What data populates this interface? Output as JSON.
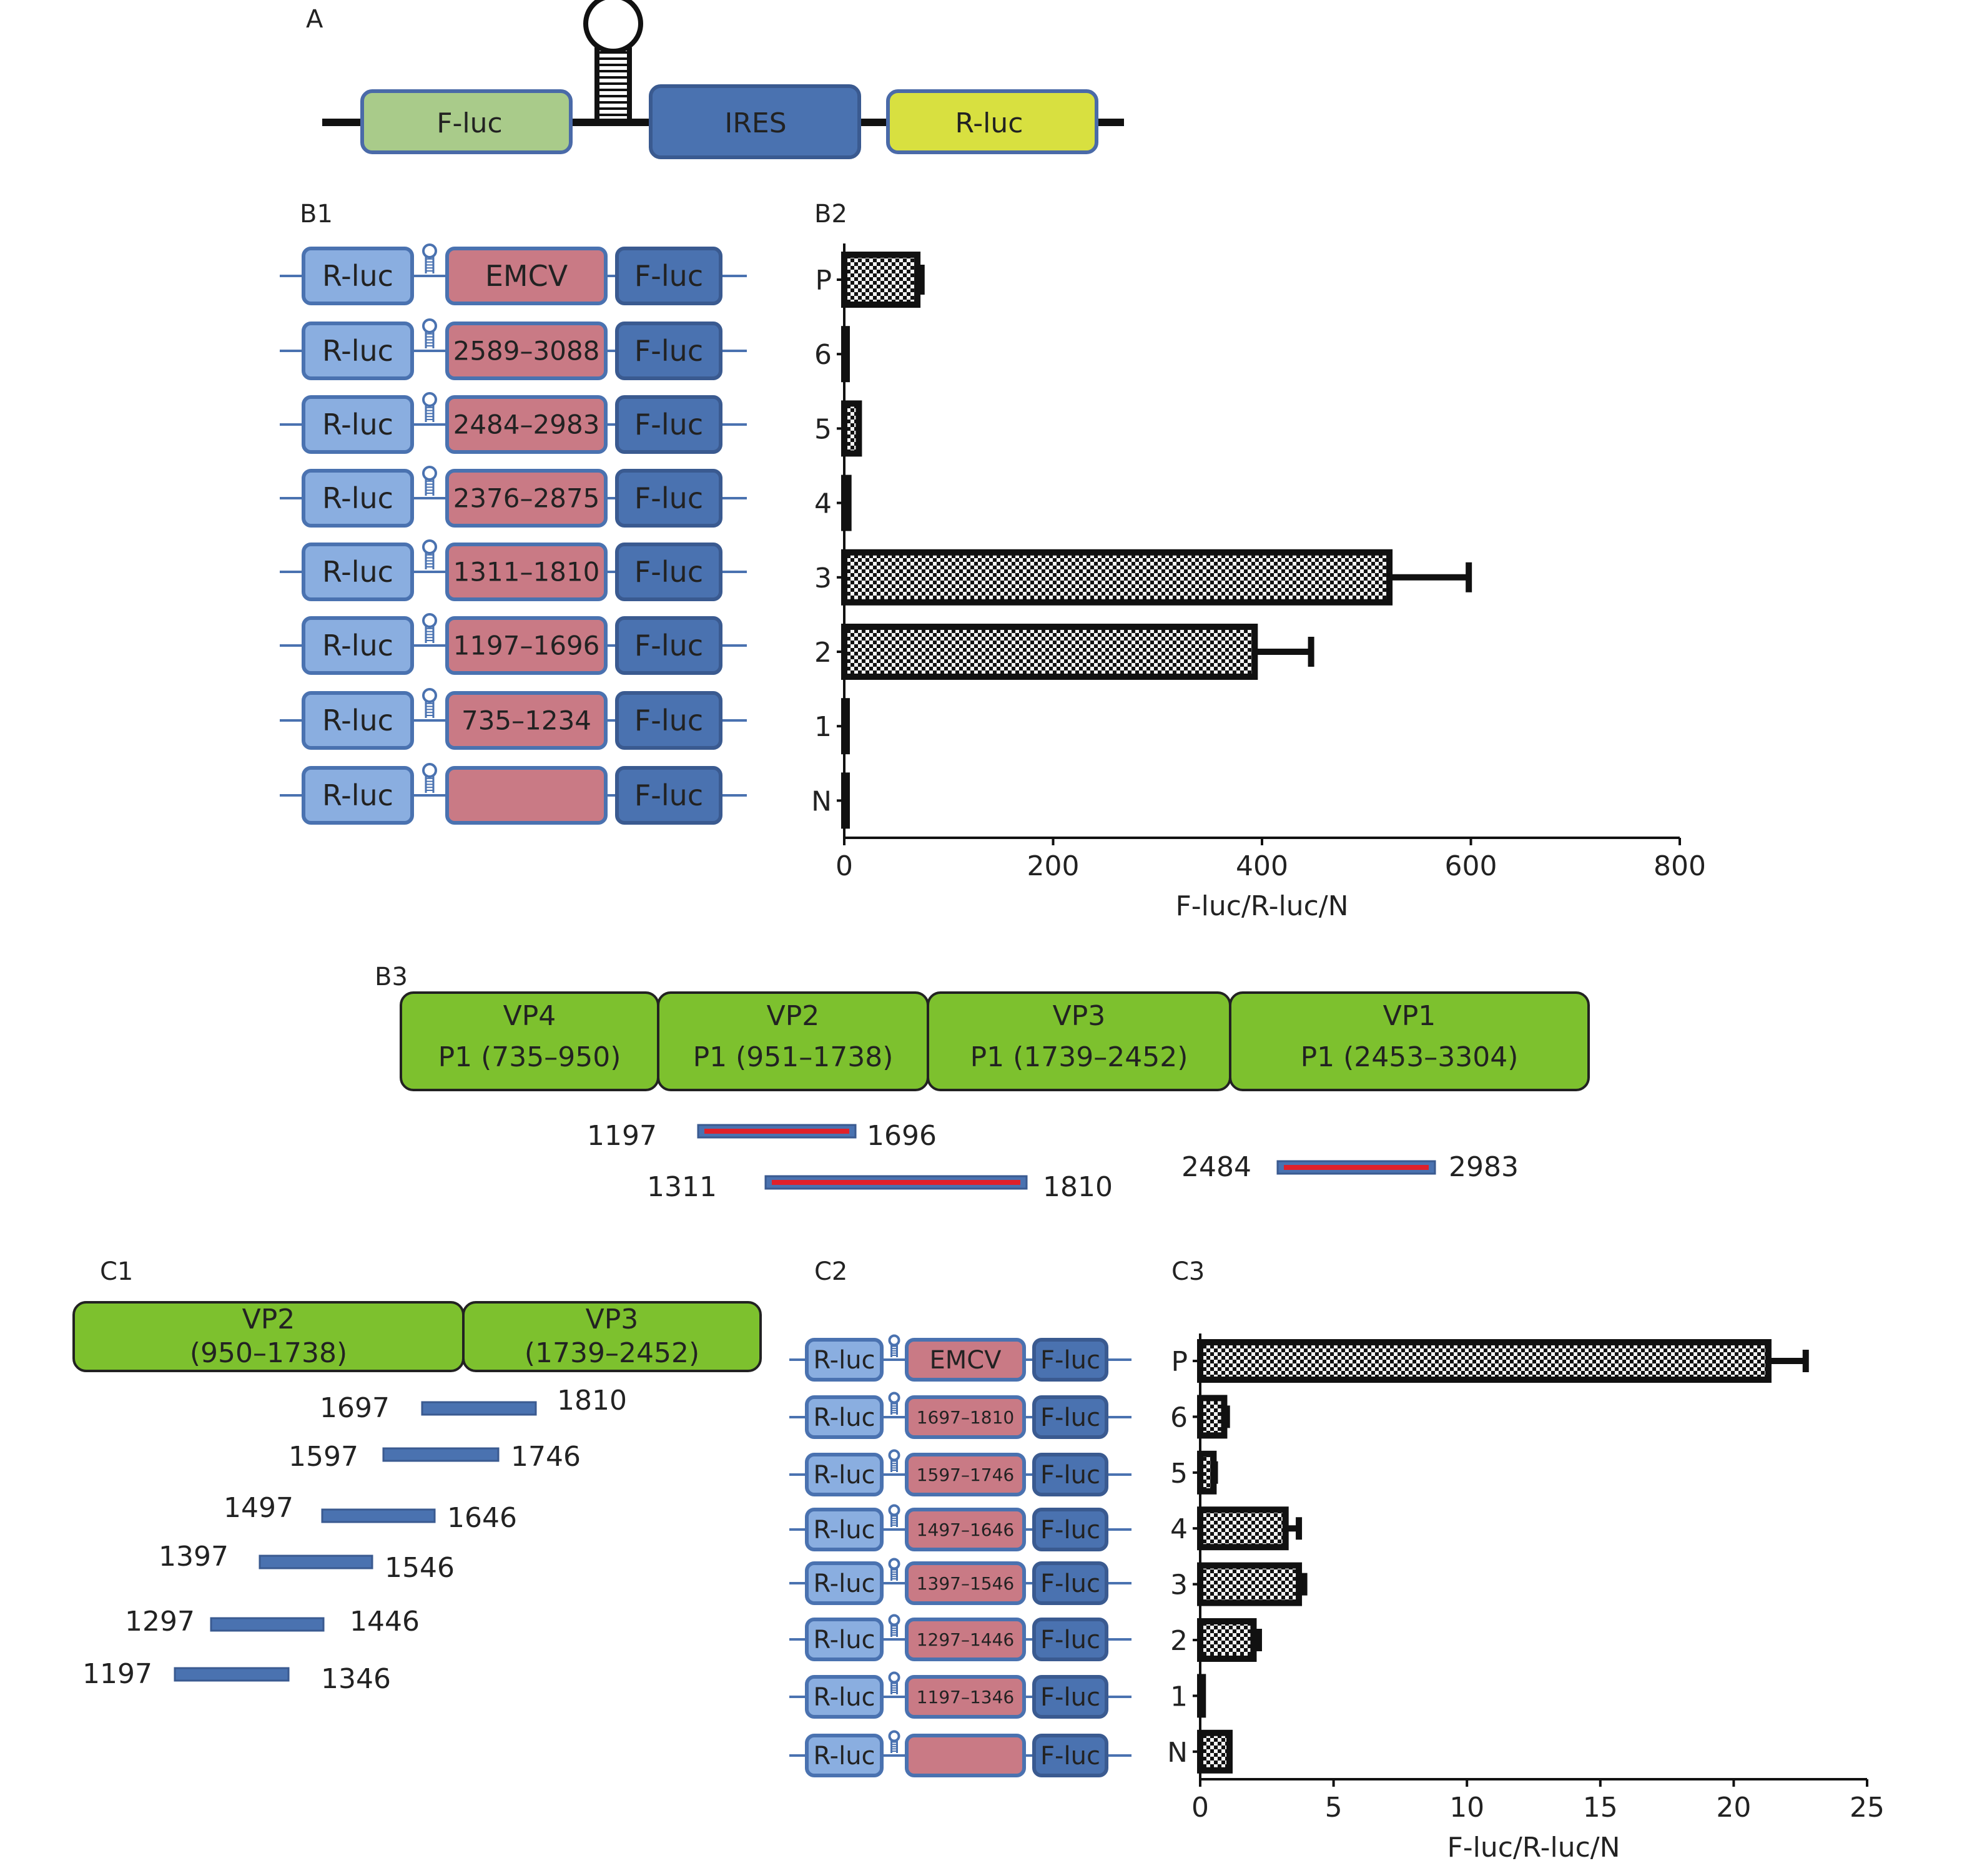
{
  "panel_labels": {
    "a": "A",
    "b1": "B1",
    "b2": "B2",
    "b3": "B3",
    "c1": "C1",
    "c2": "C2",
    "c3": "C3"
  },
  "panel_a": {
    "boxes": [
      "F-luc",
      "IRES",
      "R-luc"
    ]
  },
  "colors": {
    "rluc_light": "#8aaee0",
    "fluc_dark": "#4a72b0",
    "insert": "#c97a85",
    "vp_green": "#7dc12e",
    "fluc_green": "#a9cb8a",
    "rluc_yellow": "#d8e040",
    "segment_red": "#e0202a"
  },
  "b1": {
    "rluc": "R-luc",
    "fluc": "F-luc",
    "inserts": [
      "EMCV",
      "2589–3088",
      "2484–2983",
      "2376–2875",
      "1311–1810",
      "1197–1696",
      "735–1234",
      ""
    ]
  },
  "b3": {
    "proteins": [
      {
        "name": "VP4",
        "range": "P1 (735–950)"
      },
      {
        "name": "VP2",
        "range": "P1 (951–1738)"
      },
      {
        "name": "VP3",
        "range": "P1 (1739–2452)"
      },
      {
        "name": "VP1",
        "range": "P1 (2453–3304)"
      }
    ],
    "segments": [
      {
        "start": "1197",
        "end": "1696"
      },
      {
        "start": "1311",
        "end": "1810"
      },
      {
        "start": "2484",
        "end": "2983"
      }
    ]
  },
  "c1": {
    "proteins": [
      {
        "name": "VP2",
        "range": "(950–1738)"
      },
      {
        "name": "VP3",
        "range": "(1739–2452)"
      }
    ],
    "segments": [
      {
        "start": "1697",
        "end": "1810"
      },
      {
        "start": "1597",
        "end": "1746"
      },
      {
        "start": "1497",
        "end": "1646"
      },
      {
        "start": "1397",
        "end": "1546"
      },
      {
        "start": "1297",
        "end": "1446"
      },
      {
        "start": "1197",
        "end": "1346"
      }
    ]
  },
  "c2": {
    "rluc": "R-luc",
    "fluc": "F-luc",
    "inserts": [
      "EMCV",
      "1697–1810",
      "1597–1746",
      "1497–1646",
      "1397–1546",
      "1297–1446",
      "1197–1346",
      ""
    ]
  },
  "chart_data": [
    {
      "id": "B2",
      "type": "bar",
      "orientation": "horizontal",
      "categories": [
        "P",
        "6",
        "5",
        "4",
        "3",
        "2",
        "1",
        "N"
      ],
      "values": [
        70,
        2,
        14,
        4,
        522,
        393,
        2,
        1
      ],
      "error_upper": [
        74,
        2,
        14,
        4,
        598,
        447,
        2,
        1
      ],
      "xlabel": "F-luc/R-luc/N",
      "xlim": [
        0,
        800
      ],
      "xticks": [
        "0",
        "200",
        "400",
        "600",
        "800"
      ]
    },
    {
      "id": "C3",
      "type": "bar",
      "orientation": "horizontal",
      "categories": [
        "P",
        "6",
        "5",
        "4",
        "3",
        "2",
        "1",
        "N"
      ],
      "values": [
        21.3,
        0.9,
        0.5,
        3.2,
        3.7,
        2.0,
        0.1,
        1.1
      ],
      "error_upper": [
        22.7,
        1.0,
        0.55,
        3.7,
        3.9,
        2.2,
        0.1,
        1.1
      ],
      "xlabel": "F-luc/R-luc/N",
      "xlim": [
        0,
        25
      ],
      "xticks": [
        "0",
        "5",
        "10",
        "15",
        "20",
        "25"
      ]
    }
  ]
}
